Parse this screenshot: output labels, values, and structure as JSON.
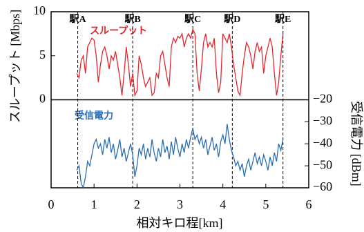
{
  "chart_data": {
    "type": "line",
    "xlabel": "相対キロ程[km]",
    "ylabel": "スループット [Mbps]",
    "y2label": "受信電力 [dBm]",
    "xlim": [
      0,
      6
    ],
    "xticks": [
      0,
      1,
      2,
      3,
      4,
      5,
      6
    ],
    "ylim": [
      -10,
      10
    ],
    "yticks": [
      0,
      5,
      10
    ],
    "y2lim": [
      -60,
      20
    ],
    "y2ticks": [
      {
        "value": -20,
        "label": "−20"
      },
      {
        "value": -30,
        "label": "−30"
      },
      {
        "value": -40,
        "label": "−40"
      },
      {
        "value": -50,
        "label": "−50"
      },
      {
        "value": -60,
        "label": "−60"
      }
    ],
    "stations": [
      {
        "name": "駅A",
        "x": 0.62
      },
      {
        "name": "駅B",
        "x": 1.9
      },
      {
        "name": "駅C",
        "x": 3.3
      },
      {
        "name": "駅D",
        "x": 4.22
      },
      {
        "name": "駅E",
        "x": 5.4
      }
    ],
    "x": [
      0.6,
      0.65,
      0.7,
      0.75,
      0.8,
      0.85,
      0.9,
      0.95,
      1.0,
      1.05,
      1.1,
      1.15,
      1.2,
      1.25,
      1.3,
      1.35,
      1.4,
      1.45,
      1.5,
      1.55,
      1.6,
      1.65,
      1.7,
      1.75,
      1.8,
      1.85,
      1.9,
      1.95,
      2.0,
      2.05,
      2.1,
      2.15,
      2.2,
      2.25,
      2.3,
      2.35,
      2.4,
      2.45,
      2.5,
      2.55,
      2.6,
      2.65,
      2.7,
      2.75,
      2.8,
      2.85,
      2.9,
      2.95,
      3.0,
      3.05,
      3.1,
      3.15,
      3.2,
      3.25,
      3.3,
      3.35,
      3.4,
      3.45,
      3.5,
      3.55,
      3.6,
      3.65,
      3.7,
      3.75,
      3.8,
      3.85,
      3.9,
      3.95,
      4.0,
      4.05,
      4.1,
      4.15,
      4.2,
      4.25,
      4.3,
      4.35,
      4.4,
      4.45,
      4.5,
      4.55,
      4.6,
      4.65,
      4.7,
      4.75,
      4.8,
      4.85,
      4.9,
      4.95,
      5.0,
      5.05,
      5.1,
      5.15,
      5.2,
      5.25,
      5.3,
      5.35,
      5.4
    ],
    "series": [
      {
        "name": "スループット",
        "color": "#e3262b",
        "values": [
          3,
          2.5,
          4.5,
          5,
          3,
          6,
          6.5,
          7,
          6.8,
          5,
          2,
          4,
          5.5,
          6,
          5,
          3.5,
          5,
          4.5,
          5.5,
          4,
          2.5,
          0.5,
          3,
          6,
          4,
          1.5,
          3,
          0.5,
          1,
          5,
          4,
          2.5,
          1.5,
          2,
          2.5,
          0.5,
          0.8,
          3,
          2.5,
          5,
          5.5,
          4,
          2.5,
          1.5,
          6,
          7,
          6.5,
          7.2,
          7,
          7.5,
          6,
          7,
          7.5,
          7,
          8,
          7.5,
          3,
          1,
          3.5,
          6.5,
          7.5,
          6,
          6.5,
          6,
          7,
          3,
          0.8,
          2,
          7.5,
          7,
          6.5,
          7.5,
          6,
          4,
          2.5,
          1,
          0.5,
          3,
          5,
          6.5,
          6,
          5,
          3.5,
          5.5,
          6.5,
          5.5,
          6,
          3,
          5,
          6,
          7,
          6,
          3,
          0.5,
          2,
          5,
          7.5
        ]
      },
      {
        "name": "受信電力",
        "color": "#2a6db3",
        "axis": "y2",
        "values": [
          -52,
          -50,
          -58,
          -60,
          -55,
          -48,
          -50,
          -45,
          -40,
          -38,
          -42,
          -40,
          -45,
          -38,
          -42,
          -37,
          -44,
          -40,
          -47,
          -43,
          -38,
          -46,
          -42,
          -48,
          -44,
          -40,
          -45,
          -55,
          -50,
          -42,
          -45,
          -40,
          -47,
          -42,
          -46,
          -38,
          -44,
          -48,
          -42,
          -46,
          -38,
          -44,
          -41,
          -47,
          -39,
          -45,
          -37,
          -42,
          -46,
          -40,
          -44,
          -38,
          -42,
          -37,
          -33,
          -38,
          -36,
          -40,
          -37,
          -42,
          -38,
          -45,
          -41,
          -37,
          -43,
          -40,
          -46,
          -39,
          -36,
          -40,
          -31,
          -38,
          -43,
          -46,
          -50,
          -48,
          -52,
          -49,
          -55,
          -50,
          -47,
          -52,
          -48,
          -44,
          -49,
          -46,
          -50,
          -45,
          -48,
          -52,
          -46,
          -50,
          -44,
          -48,
          -40,
          -43,
          -38
        ]
      }
    ]
  }
}
